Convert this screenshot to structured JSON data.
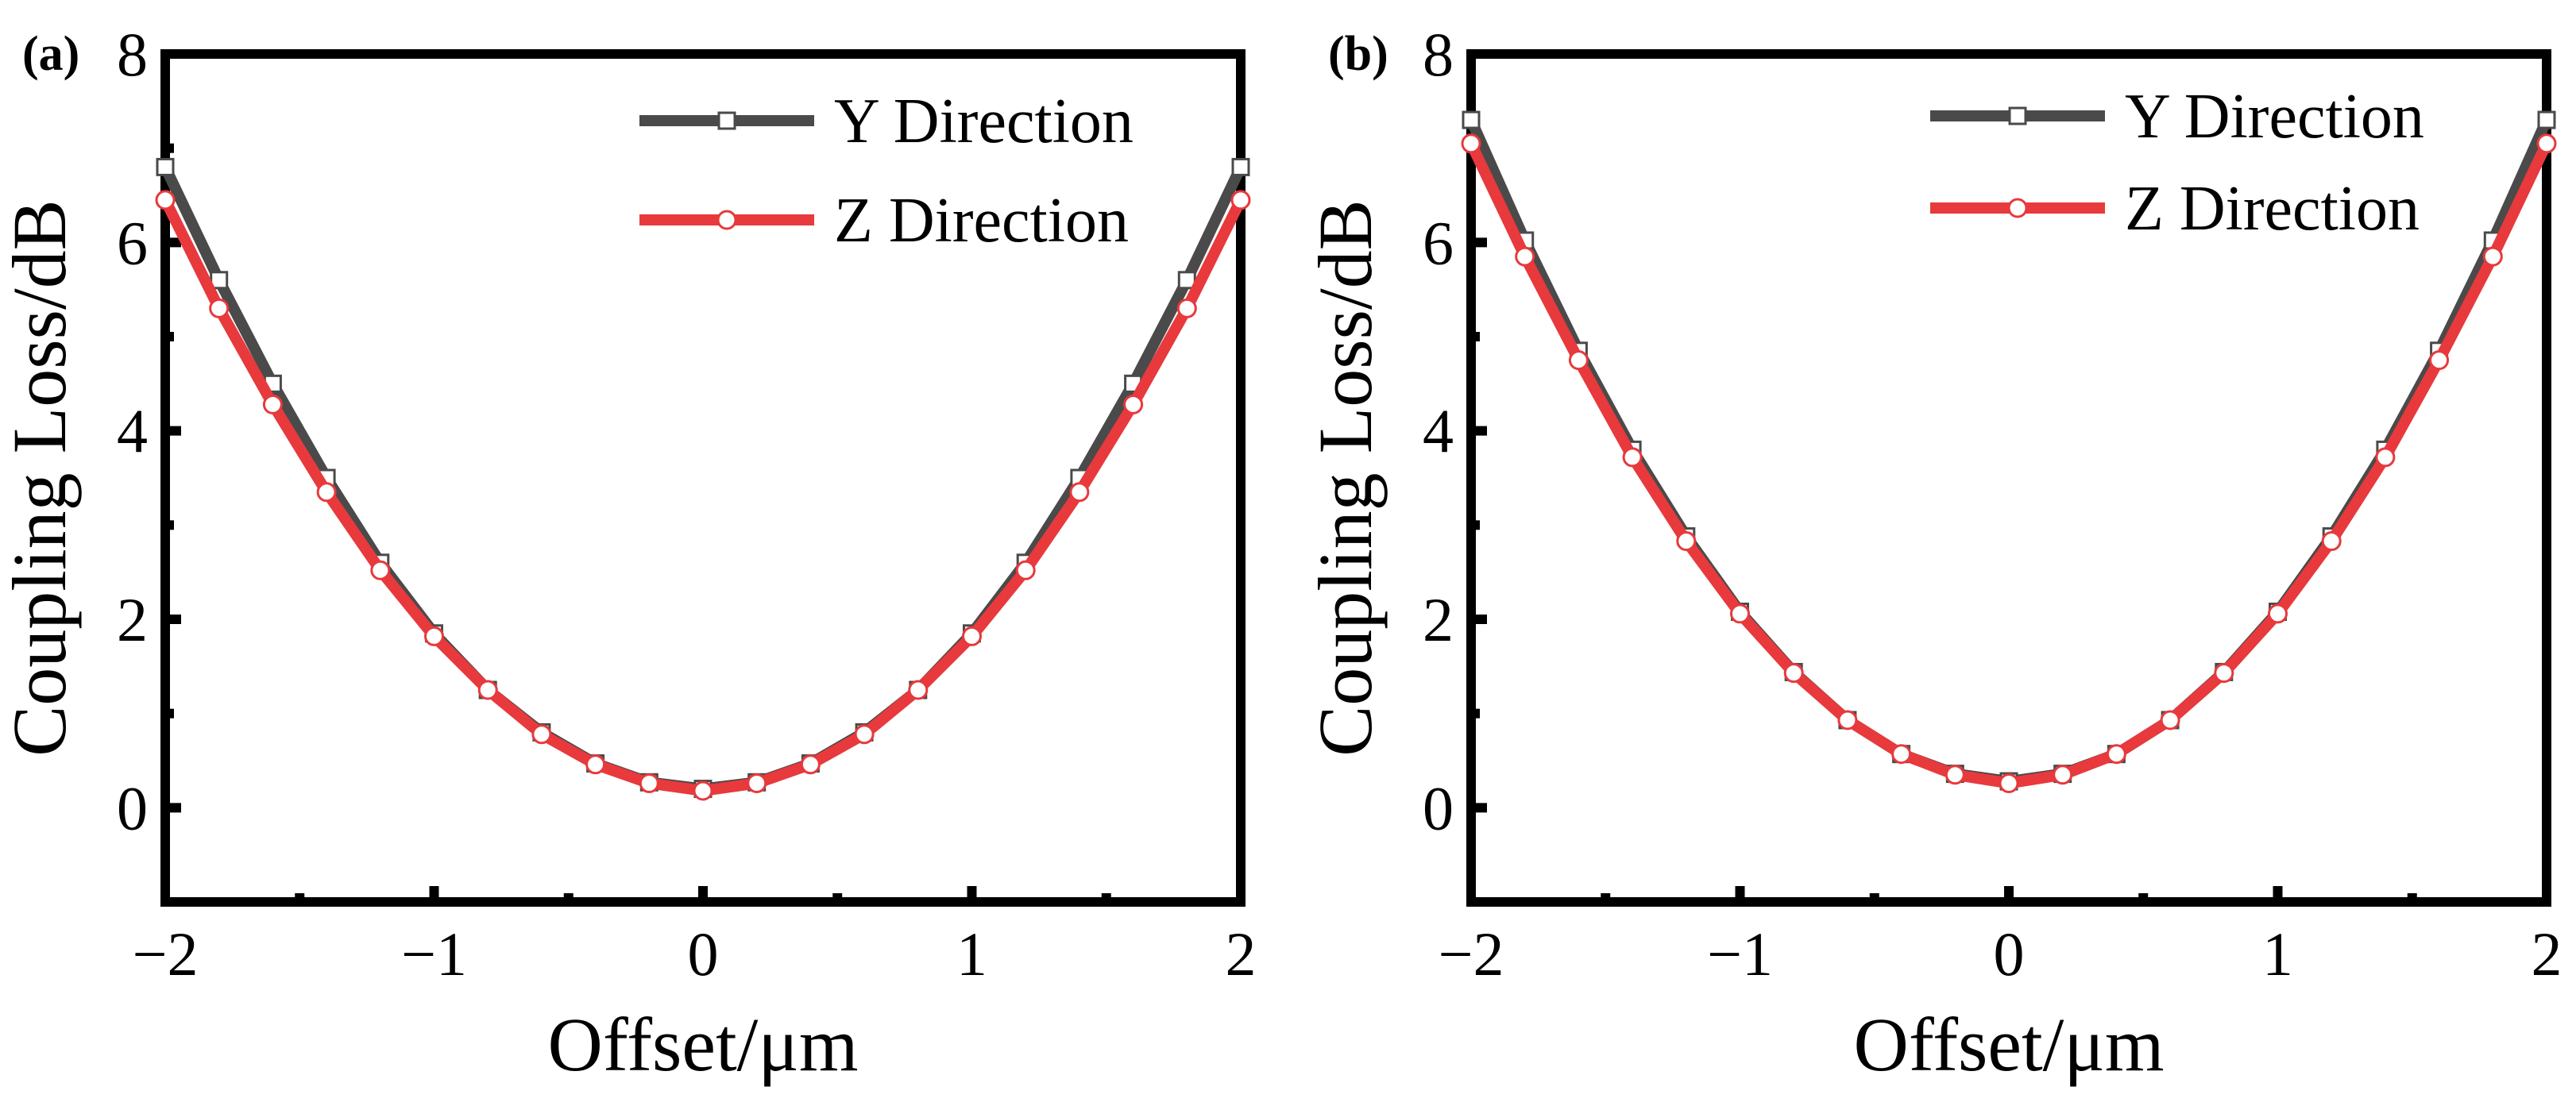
{
  "figure": {
    "panels_count": 2
  },
  "chart_data": [
    {
      "type": "line",
      "panel_label": "(a)",
      "title": "",
      "xlabel": "Offset/μm",
      "ylabel": "Coupling Loss/dB",
      "xlim": [
        -2,
        2
      ],
      "ylim": [
        -1,
        8
      ],
      "xticks": [
        -2,
        -1,
        0,
        1,
        2
      ],
      "xtick_labels": [
        "−2",
        "−1",
        "0",
        "1",
        "2"
      ],
      "yticks": [
        0,
        2,
        4,
        6,
        8
      ],
      "ytick_labels": [
        "0",
        "2",
        "4",
        "6",
        "8"
      ],
      "grid": false,
      "legend_position": "top-right",
      "x": [
        -2.0,
        -1.8,
        -1.6,
        -1.4,
        -1.2,
        -1.0,
        -0.8,
        -0.6,
        -0.4,
        -0.2,
        0.0,
        0.2,
        0.4,
        0.6,
        0.8,
        1.0,
        1.2,
        1.4,
        1.6,
        1.8,
        2.0
      ],
      "series": [
        {
          "name": "Y Direction",
          "color": "#4a4a4a",
          "marker": "square",
          "values": [
            6.8,
            5.6,
            4.5,
            3.5,
            2.6,
            1.85,
            1.25,
            0.8,
            0.47,
            0.27,
            0.2,
            0.27,
            0.47,
            0.8,
            1.25,
            1.85,
            2.6,
            3.5,
            4.5,
            5.6,
            6.8
          ]
        },
        {
          "name": "Z Direction",
          "color": "#e8393c",
          "marker": "circle",
          "values": [
            6.45,
            5.3,
            4.28,
            3.35,
            2.52,
            1.82,
            1.25,
            0.78,
            0.46,
            0.26,
            0.18,
            0.26,
            0.46,
            0.78,
            1.25,
            1.82,
            2.52,
            3.35,
            4.28,
            5.3,
            6.45
          ]
        }
      ]
    },
    {
      "type": "line",
      "panel_label": "(b)",
      "title": "",
      "xlabel": "Offset/μm",
      "ylabel": "Coupling Loss/dB",
      "xlim": [
        -2,
        2
      ],
      "ylim": [
        -1,
        8
      ],
      "xticks": [
        -2,
        -1,
        0,
        1,
        2
      ],
      "xtick_labels": [
        "−2",
        "−1",
        "0",
        "1",
        "2"
      ],
      "yticks": [
        0,
        2,
        4,
        6,
        8
      ],
      "ytick_labels": [
        "0",
        "2",
        "4",
        "6",
        "8"
      ],
      "grid": false,
      "legend_position": "top-right",
      "x": [
        -2.0,
        -1.8,
        -1.6,
        -1.4,
        -1.2,
        -1.0,
        -0.8,
        -0.6,
        -0.4,
        -0.2,
        0.0,
        0.2,
        0.4,
        0.6,
        0.8,
        1.0,
        1.2,
        1.4,
        1.6,
        1.8,
        2.0
      ],
      "series": [
        {
          "name": "Y Direction",
          "color": "#4a4a4a",
          "marker": "square",
          "values": [
            7.3,
            6.02,
            4.85,
            3.8,
            2.88,
            2.08,
            1.44,
            0.93,
            0.57,
            0.36,
            0.28,
            0.36,
            0.57,
            0.93,
            1.44,
            2.08,
            2.88,
            3.8,
            4.85,
            6.02,
            7.3
          ]
        },
        {
          "name": "Z Direction",
          "color": "#e8393c",
          "marker": "circle",
          "values": [
            7.05,
            5.85,
            4.75,
            3.72,
            2.83,
            2.06,
            1.43,
            0.93,
            0.57,
            0.35,
            0.26,
            0.35,
            0.57,
            0.93,
            1.43,
            2.06,
            2.83,
            3.72,
            4.75,
            5.85,
            7.05
          ]
        }
      ]
    }
  ]
}
